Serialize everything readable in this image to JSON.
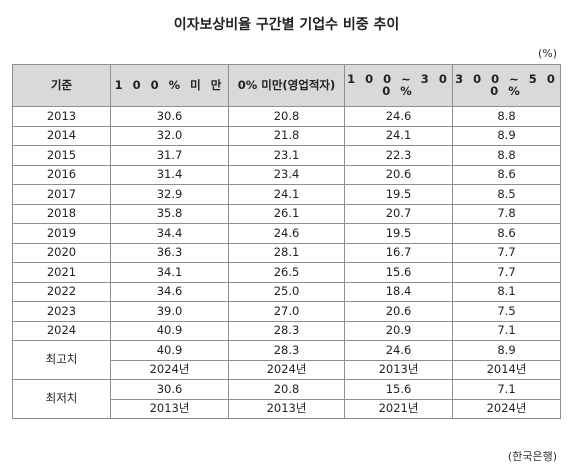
{
  "title": "이자보상비율 구간별 기업수 비중 추이",
  "unit": "(%)",
  "columns": [
    "기준",
    "1 0 0 % 미 만",
    "0% 미만(영업적자)",
    "1 0 0 ~ 3 0 0 %",
    "3 0 0 ~ 5 0 0 %"
  ],
  "rows": [
    {
      "year": "2013",
      "v1": "30.6",
      "v2": "20.8",
      "v3": "24.6",
      "v4": "8.8"
    },
    {
      "year": "2014",
      "v1": "32.0",
      "v2": "21.8",
      "v3": "24.1",
      "v4": "8.9"
    },
    {
      "year": "2015",
      "v1": "31.7",
      "v2": "23.1",
      "v3": "22.3",
      "v4": "8.8"
    },
    {
      "year": "2016",
      "v1": "31.4",
      "v2": "23.4",
      "v3": "20.6",
      "v4": "8.6"
    },
    {
      "year": "2017",
      "v1": "32.9",
      "v2": "24.1",
      "v3": "19.5",
      "v4": "8.5"
    },
    {
      "year": "2018",
      "v1": "35.8",
      "v2": "26.1",
      "v3": "20.7",
      "v4": "7.8"
    },
    {
      "year": "2019",
      "v1": "34.4",
      "v2": "24.6",
      "v3": "19.5",
      "v4": "8.6"
    },
    {
      "year": "2020",
      "v1": "36.3",
      "v2": "28.1",
      "v3": "16.7",
      "v4": "7.7"
    },
    {
      "year": "2021",
      "v1": "34.1",
      "v2": "26.5",
      "v3": "15.6",
      "v4": "7.7"
    },
    {
      "year": "2022",
      "v1": "34.6",
      "v2": "25.0",
      "v3": "18.4",
      "v4": "8.1"
    },
    {
      "year": "2023",
      "v1": "39.0",
      "v2": "27.0",
      "v3": "20.6",
      "v4": "7.5"
    },
    {
      "year": "2024",
      "v1": "40.9",
      "v2": "28.3",
      "v3": "20.9",
      "v4": "7.1"
    }
  ],
  "max": {
    "label": "최고치",
    "values": [
      "40.9",
      "28.3",
      "24.6",
      "8.9"
    ],
    "years": [
      "2024년",
      "2024년",
      "2013년",
      "2014년"
    ]
  },
  "min": {
    "label": "최저치",
    "values": [
      "30.6",
      "20.8",
      "15.6",
      "7.1"
    ],
    "years": [
      "2013년",
      "2013년",
      "2021년",
      "2024년"
    ]
  },
  "source": "(한국은행)"
}
